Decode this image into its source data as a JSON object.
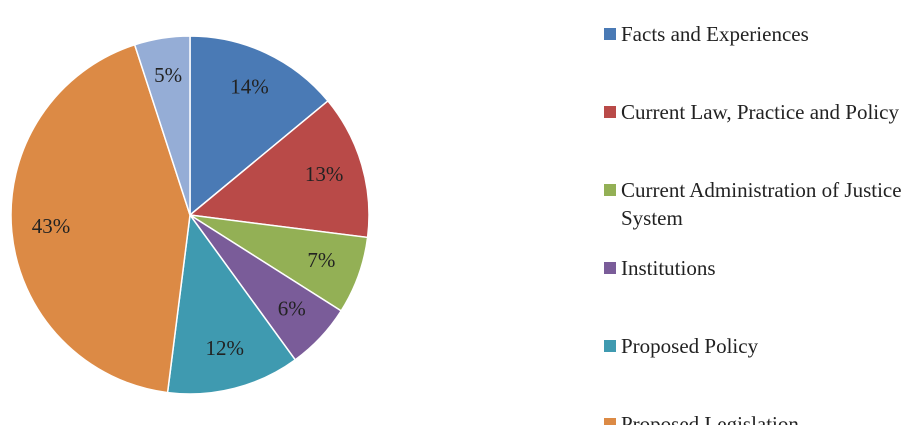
{
  "chart_data": {
    "type": "pie",
    "categories": [
      "Facts and Experiences",
      "Current Law, Practice and Policy",
      "Current Administration of Justice System",
      "Institutions",
      "Proposed Policy",
      "Proposed Legislation",
      null
    ],
    "values": [
      14,
      13,
      7,
      6,
      12,
      43,
      5
    ],
    "value_labels": [
      "14%",
      "13%",
      "7%",
      "6%",
      "12%",
      "43%",
      "5%"
    ],
    "colors": [
      "#4a7ab5",
      "#b94a48",
      "#93b055",
      "#7a5c99",
      "#3f9ab0",
      "#dc8a45",
      "#95add6"
    ],
    "legend": "right"
  }
}
